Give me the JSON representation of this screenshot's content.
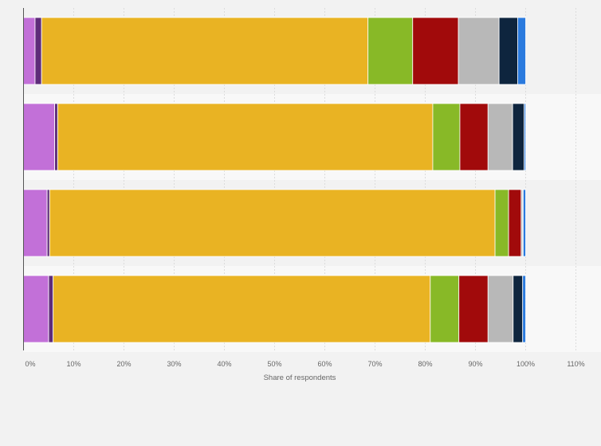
{
  "chart_data": {
    "type": "bar",
    "orientation": "horizontal",
    "stacked": true,
    "title": "",
    "xlabel": "Share of respondents",
    "ylabel": "",
    "xlim": [
      0,
      110
    ],
    "x_ticks": [
      "0%",
      "10%",
      "20%",
      "30%",
      "40%",
      "50%",
      "60%",
      "70%",
      "80%",
      "90%",
      "100%",
      "110%"
    ],
    "grid": true,
    "legend": "none",
    "categories": [
      "",
      "",
      "",
      ""
    ],
    "series": [
      {
        "color": "#c270d8",
        "values": [
          2.3,
          6.2,
          4.7,
          5.0
        ]
      },
      {
        "color": "#5e2c7a",
        "values": [
          1.3,
          0.6,
          0.5,
          0.9
        ]
      },
      {
        "color": "#e9b323",
        "values": [
          65.0,
          74.7,
          88.7,
          75.1
        ]
      },
      {
        "color": "#88b927",
        "values": [
          8.9,
          5.4,
          2.7,
          5.7
        ]
      },
      {
        "color": "#a10a0b",
        "values": [
          9.1,
          5.6,
          2.5,
          5.8
        ]
      },
      {
        "color": "#b8b8b8",
        "values": [
          8.1,
          4.9,
          0.3,
          5.0
        ]
      },
      {
        "color": "#0e253e",
        "values": [
          3.7,
          2.3,
          0.1,
          1.9
        ]
      },
      {
        "color": "#2a7ade",
        "values": [
          1.6,
          0.3,
          0.5,
          0.6
        ]
      }
    ]
  }
}
